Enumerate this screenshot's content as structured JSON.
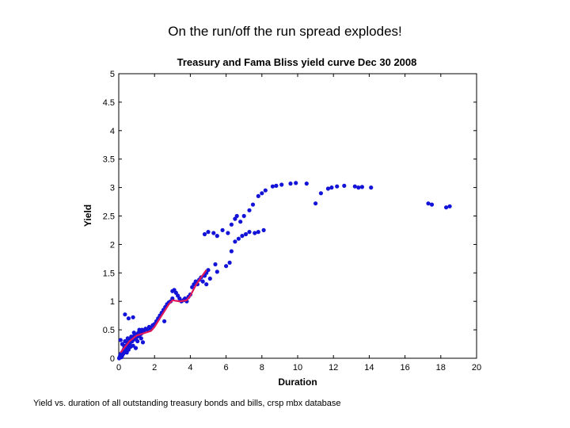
{
  "slide": {
    "title": "On the run/off the run spread explodes!",
    "caption": "Yield vs. duration of all outstanding treasury bonds and bills, crsp mbx database"
  },
  "chart_data": {
    "type": "scatter",
    "title": "Treasury and Fama Bliss  yield curve Dec 30 2008",
    "xlabel": "Duration",
    "ylabel": "Yield",
    "xlim": [
      0,
      20
    ],
    "ylim": [
      0,
      5
    ],
    "xticks": [
      "0",
      "2",
      "4",
      "6",
      "8",
      "10",
      "12",
      "14",
      "16",
      "18",
      "20"
    ],
    "yticks": [
      "0",
      "0.5",
      "1",
      "1.5",
      "2",
      "2.5",
      "3",
      "3.5",
      "4",
      "4.5",
      "5"
    ],
    "grid": false,
    "colors": {
      "points": "#1414d8",
      "curve": "#e0185a"
    },
    "series": [
      {
        "type": "scatter",
        "values": [
          [
            0.02,
            0.0
          ],
          [
            0.05,
            0.02
          ],
          [
            0.08,
            0.05
          ],
          [
            0.1,
            0.03
          ],
          [
            0.12,
            0.08
          ],
          [
            0.15,
            0.02
          ],
          [
            0.18,
            0.1
          ],
          [
            0.2,
            0.05
          ],
          [
            0.22,
            0.12
          ],
          [
            0.25,
            0.08
          ],
          [
            0.28,
            0.15
          ],
          [
            0.3,
            0.1
          ],
          [
            0.32,
            0.18
          ],
          [
            0.35,
            0.12
          ],
          [
            0.38,
            0.2
          ],
          [
            0.4,
            0.15
          ],
          [
            0.42,
            0.22
          ],
          [
            0.45,
            0.18
          ],
          [
            0.48,
            0.25
          ],
          [
            0.5,
            0.2
          ],
          [
            0.52,
            0.28
          ],
          [
            0.55,
            0.22
          ],
          [
            0.58,
            0.3
          ],
          [
            0.6,
            0.25
          ],
          [
            0.62,
            0.32
          ],
          [
            0.65,
            0.28
          ],
          [
            0.7,
            0.35
          ],
          [
            0.75,
            0.3
          ],
          [
            0.8,
            0.38
          ],
          [
            0.85,
            0.33
          ],
          [
            0.9,
            0.4
          ],
          [
            0.95,
            0.35
          ],
          [
            1.0,
            0.42
          ],
          [
            1.05,
            0.38
          ],
          [
            1.1,
            0.45
          ],
          [
            1.15,
            0.4
          ],
          [
            1.2,
            0.48
          ],
          [
            1.25,
            0.43
          ],
          [
            1.3,
            0.5
          ],
          [
            1.4,
            0.47
          ],
          [
            1.5,
            0.52
          ],
          [
            1.6,
            0.5
          ],
          [
            1.7,
            0.55
          ],
          [
            1.8,
            0.52
          ],
          [
            1.9,
            0.58
          ],
          [
            0.1,
            0.32
          ],
          [
            0.2,
            0.25
          ],
          [
            0.3,
            0.22
          ],
          [
            0.35,
            0.3
          ],
          [
            0.45,
            0.1
          ],
          [
            0.5,
            0.35
          ],
          [
            0.55,
            0.15
          ],
          [
            0.65,
            0.2
          ],
          [
            0.7,
            0.38
          ],
          [
            0.8,
            0.22
          ],
          [
            0.85,
            0.45
          ],
          [
            0.95,
            0.18
          ],
          [
            1.05,
            0.3
          ],
          [
            1.15,
            0.5
          ],
          [
            1.25,
            0.35
          ],
          [
            1.35,
            0.28
          ],
          [
            0.35,
            0.77
          ],
          [
            0.55,
            0.7
          ],
          [
            0.8,
            0.72
          ],
          [
            2.0,
            0.6
          ],
          [
            2.1,
            0.65
          ],
          [
            2.2,
            0.7
          ],
          [
            2.3,
            0.75
          ],
          [
            2.4,
            0.8
          ],
          [
            2.5,
            0.85
          ],
          [
            2.6,
            0.9
          ],
          [
            2.7,
            0.95
          ],
          [
            2.8,
            0.98
          ],
          [
            2.9,
            1.0
          ],
          [
            3.0,
            1.05
          ],
          [
            2.55,
            0.65
          ],
          [
            3.0,
            1.18
          ],
          [
            3.1,
            1.2
          ],
          [
            3.2,
            1.15
          ],
          [
            3.3,
            1.1
          ],
          [
            3.4,
            1.05
          ],
          [
            3.5,
            1.0
          ],
          [
            3.6,
            1.02
          ],
          [
            3.7,
            1.05
          ],
          [
            3.8,
            1.0
          ],
          [
            3.9,
            1.08
          ],
          [
            4.0,
            1.12
          ],
          [
            4.1,
            1.25
          ],
          [
            4.2,
            1.3
          ],
          [
            4.3,
            1.35
          ],
          [
            4.4,
            1.3
          ],
          [
            4.5,
            1.38
          ],
          [
            4.6,
            1.42
          ],
          [
            4.7,
            1.35
          ],
          [
            4.8,
            1.45
          ],
          [
            4.9,
            1.5
          ],
          [
            5.0,
            1.55
          ],
          [
            4.9,
            1.3
          ],
          [
            5.1,
            1.4
          ],
          [
            5.4,
            1.65
          ],
          [
            5.5,
            1.52
          ],
          [
            6.0,
            1.62
          ],
          [
            6.2,
            1.68
          ],
          [
            6.3,
            1.88
          ],
          [
            6.5,
            2.05
          ],
          [
            6.7,
            2.1
          ],
          [
            6.9,
            2.15
          ],
          [
            7.1,
            2.18
          ],
          [
            7.3,
            2.22
          ],
          [
            7.6,
            2.2
          ],
          [
            7.8,
            2.22
          ],
          [
            8.1,
            2.25
          ],
          [
            4.8,
            2.18
          ],
          [
            5.0,
            2.22
          ],
          [
            5.3,
            2.2
          ],
          [
            5.5,
            2.15
          ],
          [
            5.8,
            2.25
          ],
          [
            6.1,
            2.2
          ],
          [
            6.3,
            2.35
          ],
          [
            6.5,
            2.45
          ],
          [
            6.6,
            2.5
          ],
          [
            6.8,
            2.4
          ],
          [
            7.0,
            2.5
          ],
          [
            7.3,
            2.6
          ],
          [
            7.5,
            2.7
          ],
          [
            7.8,
            2.85
          ],
          [
            8.0,
            2.9
          ],
          [
            8.2,
            2.95
          ],
          [
            8.6,
            3.02
          ],
          [
            8.8,
            3.03
          ],
          [
            9.1,
            3.05
          ],
          [
            9.6,
            3.07
          ],
          [
            9.9,
            3.08
          ],
          [
            10.5,
            3.07
          ],
          [
            11.0,
            2.72
          ],
          [
            11.3,
            2.9
          ],
          [
            11.7,
            2.98
          ],
          [
            11.9,
            3.0
          ],
          [
            12.2,
            3.02
          ],
          [
            12.6,
            3.03
          ],
          [
            13.2,
            3.02
          ],
          [
            13.4,
            3.0
          ],
          [
            13.6,
            3.01
          ],
          [
            14.1,
            3.0
          ],
          [
            17.3,
            2.72
          ],
          [
            17.5,
            2.7
          ],
          [
            18.3,
            2.65
          ],
          [
            18.5,
            2.67
          ]
        ]
      },
      {
        "type": "line",
        "values": [
          [
            0.1,
            0.1
          ],
          [
            0.6,
            0.3
          ],
          [
            1.0,
            0.4
          ],
          [
            1.5,
            0.45
          ],
          [
            1.8,
            0.48
          ],
          [
            2.0,
            0.55
          ],
          [
            2.4,
            0.75
          ],
          [
            2.8,
            0.95
          ],
          [
            3.0,
            1.02
          ],
          [
            3.4,
            1.0
          ],
          [
            3.8,
            1.02
          ],
          [
            4.0,
            1.1
          ],
          [
            4.3,
            1.28
          ],
          [
            4.6,
            1.42
          ],
          [
            4.9,
            1.55
          ]
        ]
      }
    ]
  }
}
